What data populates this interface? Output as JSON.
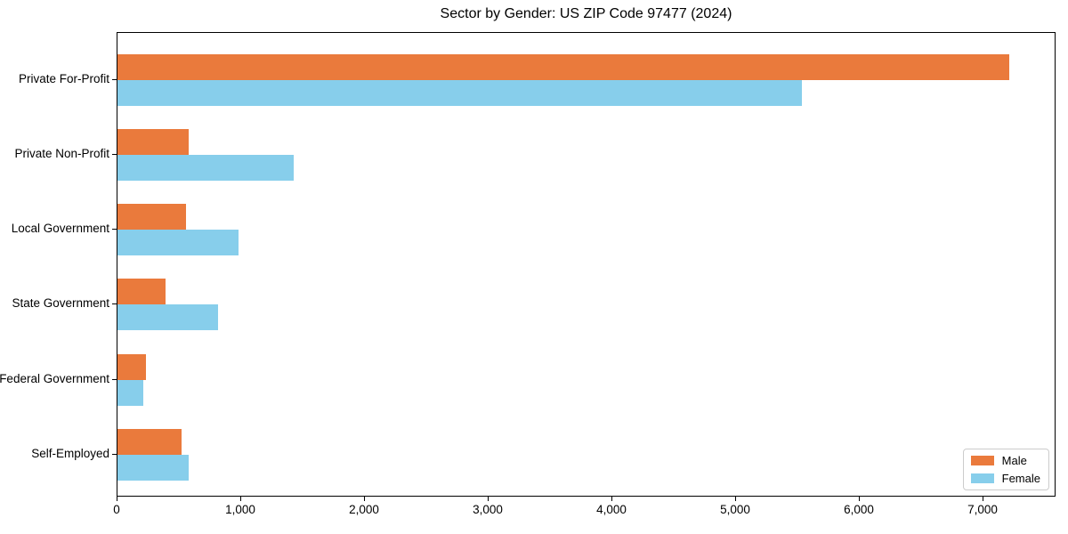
{
  "chart_data": {
    "type": "bar",
    "orientation": "horizontal",
    "title": "Sector by Gender: US ZIP Code 97477 (2024)",
    "categories": [
      "Private For-Profit",
      "Private Non-Profit",
      "Local Government",
      "State Government",
      "Federal Government",
      "Self-Employed"
    ],
    "series": [
      {
        "name": "Male",
        "color": "#EA7A3C",
        "values": [
          7220,
          575,
          555,
          390,
          230,
          520
        ]
      },
      {
        "name": "Female",
        "color": "#87CEEB",
        "values": [
          5540,
          1425,
          980,
          815,
          210,
          575
        ]
      }
    ],
    "xlabel": "",
    "ylabel": "",
    "xlim": [
      0,
      7590
    ],
    "xticks": [
      0,
      1000,
      2000,
      3000,
      4000,
      5000,
      6000,
      7000
    ],
    "xtick_labels": [
      "0",
      "1,000",
      "2,000",
      "3,000",
      "4,000",
      "5,000",
      "6,000",
      "7,000"
    ],
    "grid": false,
    "legend": {
      "position": "lower right",
      "entries": [
        "Male",
        "Female"
      ]
    }
  },
  "colors": {
    "male": "#EA7A3C",
    "female": "#87CEEB",
    "spine": "#000000",
    "legend_border": "#cccccc"
  }
}
